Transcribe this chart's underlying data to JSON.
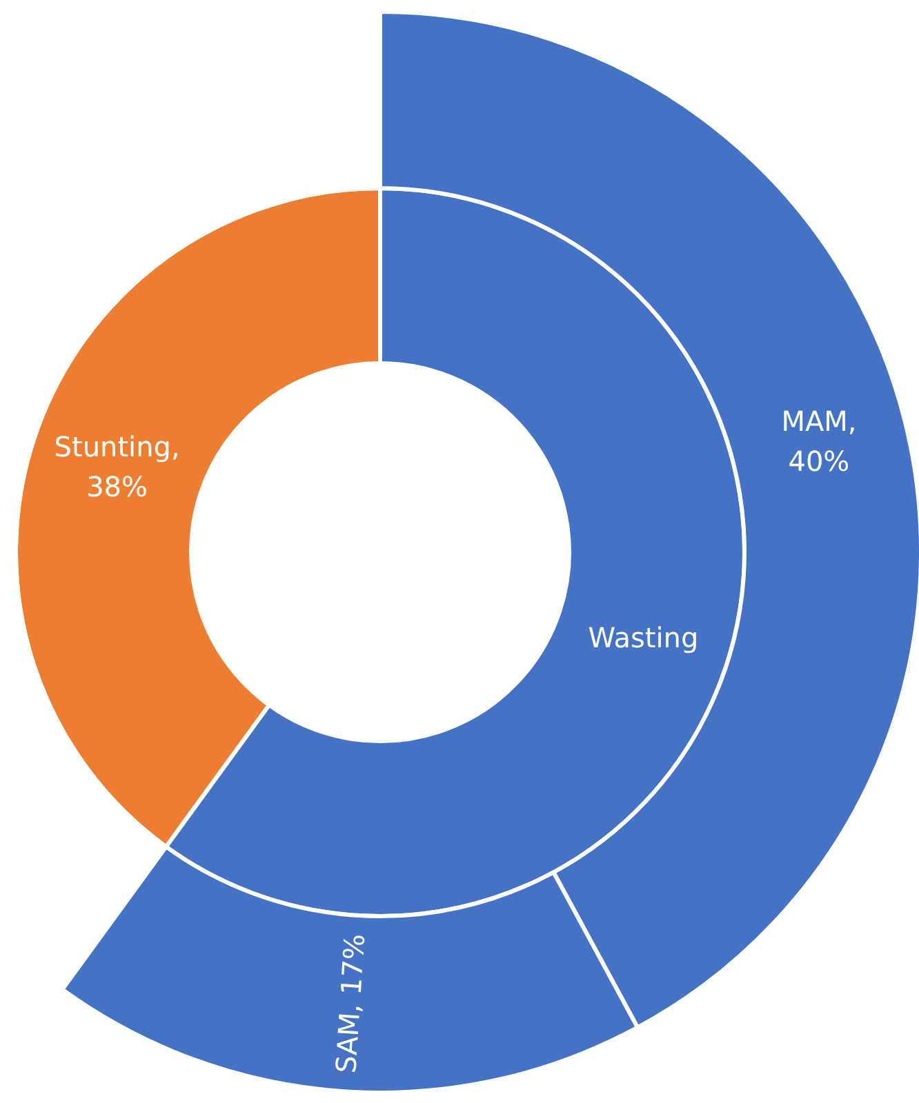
{
  "chart_data": {
    "type": "donut",
    "data_labels": true,
    "series": [
      {
        "values": [
          57,
          38
        ],
        "colors": [
          "#4472c4",
          "#ed7d31"
        ],
        "value_labels": [
          "Wasting",
          "Stunting, 38%"
        ]
      },
      {
        "values": [
          40,
          17,
          38
        ],
        "colors": [
          "#4472c4",
          "#4472c4",
          "#ffffff"
        ],
        "value_labels": [
          "MAM, 40%",
          "SAM, 17%",
          null
        ]
      }
    ]
  }
}
